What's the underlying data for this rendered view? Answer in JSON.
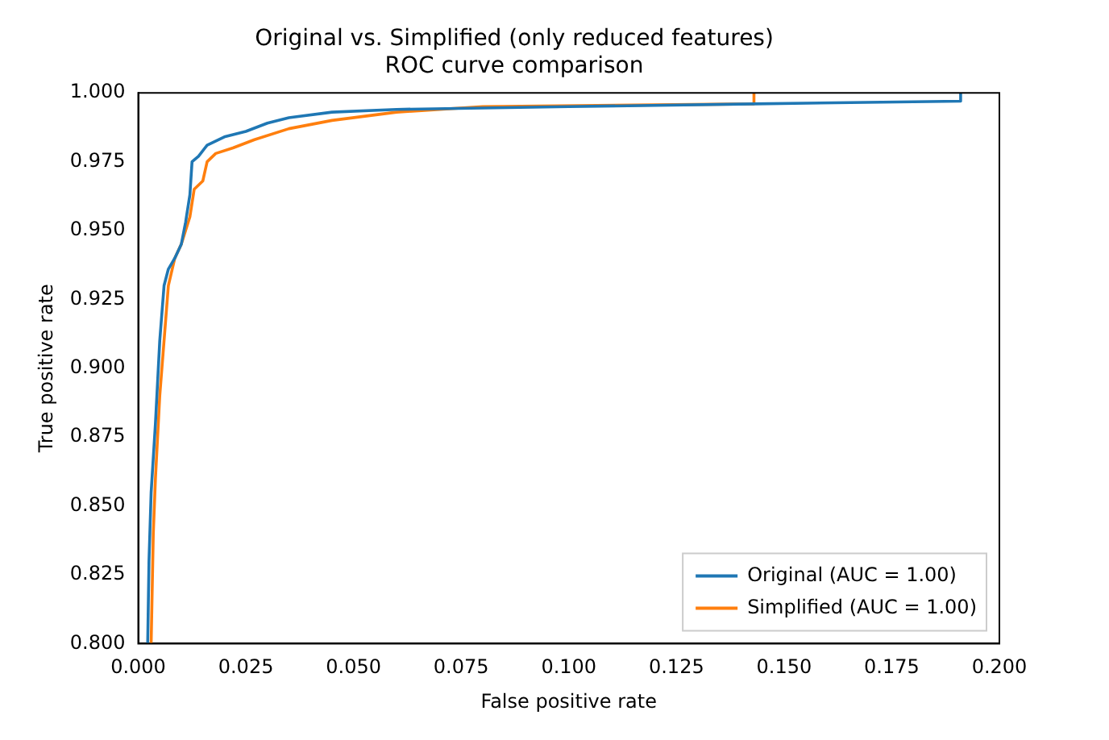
{
  "chart_data": {
    "type": "line",
    "title": "Original vs. Simplified (only reduced features) ROC curve comparison",
    "xlabel": "False positive rate",
    "ylabel": "True positive rate",
    "xlim": [
      0,
      0.2
    ],
    "ylim": [
      0.8,
      1.0
    ],
    "xticks": [
      {
        "value": 0,
        "label": "0.000"
      },
      0.025,
      {
        "value": 0.05,
        "label": "0.050"
      },
      0.075,
      {
        "value": 0.1,
        "label": "0.100"
      },
      0.125,
      {
        "value": 0.15,
        "label": "0.150"
      },
      0.175,
      {
        "value": 0.2,
        "label": "0.200"
      }
    ],
    "yticks": [
      {
        "value": 0.8,
        "label": "0.800"
      },
      0.825,
      {
        "value": 0.85,
        "label": "0.850"
      },
      0.875,
      {
        "value": 0.9,
        "label": "0.900"
      },
      0.925,
      {
        "value": 0.95,
        "label": "0.950"
      },
      0.975,
      {
        "value": 1.0,
        "label": "1.000"
      }
    ],
    "legend": "bottom right",
    "grid": false,
    "marker": "none",
    "line_style": "solid",
    "series": [
      {
        "name": "Original (AUC = 1.00)",
        "color": "#1f77b4",
        "x": [
          0.0022,
          0.0025,
          0.003,
          0.004,
          0.005,
          0.0055,
          0.006,
          0.007,
          0.0085,
          0.01,
          0.011,
          0.012,
          0.0125,
          0.014,
          0.016,
          0.02,
          0.025,
          0.03,
          0.035,
          0.045,
          0.06,
          0.1,
          0.143,
          0.191,
          0.191
        ],
        "values": [
          0.8,
          0.83,
          0.855,
          0.88,
          0.91,
          0.92,
          0.93,
          0.936,
          0.94,
          0.945,
          0.953,
          0.963,
          0.975,
          0.977,
          0.981,
          0.984,
          0.986,
          0.989,
          0.991,
          0.993,
          0.994,
          0.995,
          0.996,
          0.997,
          1.0
        ]
      },
      {
        "name": "Simplified (AUC = 1.00)",
        "color": "#ff7f0e",
        "x": [
          0.003,
          0.0035,
          0.004,
          0.005,
          0.006,
          0.007,
          0.0085,
          0.01,
          0.012,
          0.013,
          0.015,
          0.016,
          0.018,
          0.022,
          0.027,
          0.035,
          0.045,
          0.06,
          0.08,
          0.143,
          0.143
        ],
        "values": [
          0.8,
          0.84,
          0.86,
          0.89,
          0.91,
          0.93,
          0.94,
          0.945,
          0.955,
          0.965,
          0.968,
          0.975,
          0.978,
          0.98,
          0.983,
          0.987,
          0.99,
          0.993,
          0.995,
          0.996,
          1.0
        ]
      }
    ]
  }
}
